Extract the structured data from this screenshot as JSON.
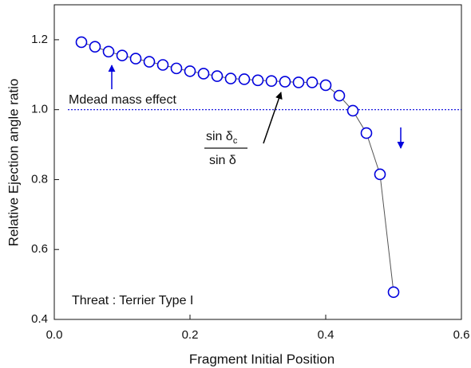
{
  "chart_data": {
    "type": "line",
    "x_label": "Fragment Initial Position",
    "y_label": "Relative Ejection angle ratio",
    "x": [
      0.04,
      0.06,
      0.08,
      0.1,
      0.12,
      0.14,
      0.16,
      0.18,
      0.2,
      0.22,
      0.24,
      0.26,
      0.28,
      0.3,
      0.32,
      0.34,
      0.36,
      0.38,
      0.4,
      0.42,
      0.44,
      0.46,
      0.48,
      0.5
    ],
    "values": [
      1.193,
      1.18,
      1.166,
      1.155,
      1.146,
      1.137,
      1.128,
      1.118,
      1.11,
      1.103,
      1.096,
      1.089,
      1.087,
      1.084,
      1.082,
      1.08,
      1.078,
      1.078,
      1.07,
      1.04,
      0.997,
      0.933,
      0.815,
      0.478
    ],
    "color": "#0000dd",
    "line_color": "#555555",
    "xlim": [
      0,
      0.6
    ],
    "ylim": [
      0.4,
      1.3
    ],
    "xticks": [
      {
        "value": 0,
        "label": "0.0"
      },
      0.2,
      0.4,
      0.6
    ],
    "yticks": [
      0.4,
      0.6,
      0.8,
      {
        "value": 1,
        "label": "1.0"
      },
      1.2
    ],
    "reference_line": {
      "y": 1,
      "x_start": 0.02,
      "color": "#0000dd"
    },
    "annotations": {
      "dead_mass": "Mdead mass effect",
      "ratio_numerator": "sin δ",
      "ratio_numerator_sub": "c",
      "ratio_denominator": "sin δ",
      "threat": "Threat : Terrier Type I"
    }
  }
}
